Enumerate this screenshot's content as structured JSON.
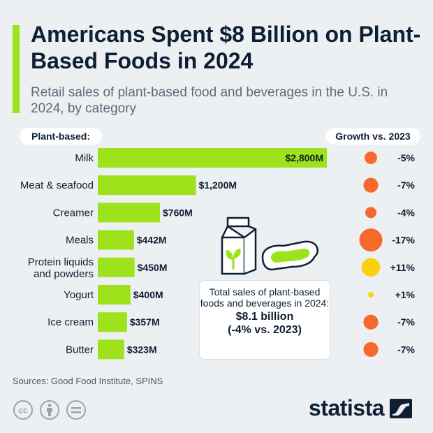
{
  "colors": {
    "accent": "#9ee21b",
    "bar": "#9ee21b",
    "negative": "#f7682d",
    "positive": "#f9d10c",
    "text": "#0f1f33"
  },
  "header": {
    "title": "Americans Spent $8 Billion on Plant-Based Foods in 2024",
    "subtitle": "Retail sales of plant-based food and beverages in the U.S. in 2024, by category"
  },
  "labels": {
    "left_header": "Plant-based:",
    "right_header": "Growth vs. 2023"
  },
  "info_box": {
    "text": "Total sales of plant-based foods and beverages in 2024:",
    "value": "$8.1 billion",
    "change": "(-4% vs. 2023)"
  },
  "chart_data": {
    "type": "bar",
    "orientation": "horizontal",
    "categories": [
      "Milk",
      "Meat & seafood",
      "Creamer",
      "Meals",
      "Protein liquids and powders",
      "Yogurt",
      "Ice cream",
      "Butter"
    ],
    "category_lines": [
      [
        "Milk"
      ],
      [
        "Meat & seafood"
      ],
      [
        "Creamer"
      ],
      [
        "Meals"
      ],
      [
        "Protein liquids",
        "and powders"
      ],
      [
        "Yogurt"
      ],
      [
        "Ice cream"
      ],
      [
        "Butter"
      ]
    ],
    "values": [
      2800,
      1200,
      760,
      442,
      450,
      400,
      357,
      323
    ],
    "value_labels": [
      "$2,800M",
      "$1,200M",
      "$760M",
      "$442M",
      "$450M",
      "$400M",
      "$357M",
      "$323M"
    ],
    "unit": "million USD",
    "growth": [
      -5,
      -7,
      -4,
      -17,
      11,
      1,
      -7,
      -7
    ],
    "growth_labels": [
      "-5%",
      "-7%",
      "-4%",
      "-17%",
      "+11%",
      "+1%",
      "-7%",
      "-7%"
    ],
    "xlim": [
      0,
      2800
    ]
  },
  "footer": {
    "source": "Sources: Good Food Institute, SPINS",
    "brand": "statista",
    "license_icons": [
      "cc-icon",
      "attribution-icon",
      "no-derivatives-icon"
    ]
  }
}
